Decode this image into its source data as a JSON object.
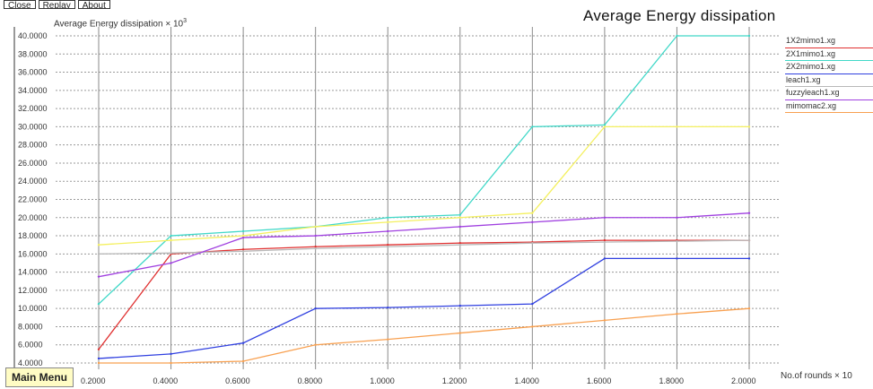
{
  "toolbar": {
    "close_label": "Close",
    "replay_label": "Replay",
    "about_label": "About"
  },
  "main_menu_label": "Main Menu",
  "chart_data": {
    "type": "line",
    "title": "Average Energy dissipation",
    "ylabel": "Average Energy dissipation × 10",
    "ylabel_exp": "3",
    "xlabel": "No.of rounds × 10",
    "x": [
      0.2,
      0.4,
      0.6,
      0.8,
      1.0,
      1.2,
      1.4,
      1.6,
      1.8,
      2.0
    ],
    "xlim": [
      0.2,
      2.0
    ],
    "ylim": [
      4.0,
      40.0
    ],
    "yticks": [
      "4.0000",
      "6.0000",
      "8.0000",
      "10.0000",
      "12.0000",
      "14.0000",
      "16.0000",
      "18.0000",
      "20.0000",
      "22.0000",
      "24.0000",
      "26.0000",
      "28.0000",
      "30.0000",
      "32.0000",
      "34.0000",
      "36.0000",
      "38.0000",
      "40.0000"
    ],
    "xticks": [
      "0.2000",
      "0.4000",
      "0.6000",
      "0.8000",
      "1.0000",
      "1.2000",
      "1.4000",
      "1.6000",
      "1.8000",
      "2.0000"
    ],
    "grid": true,
    "legend_position": "top-right",
    "series": [
      {
        "name": "1X2mimo1.xg",
        "color": "#e03030",
        "values": [
          5.5,
          16.0,
          16.5,
          16.8,
          17.0,
          17.2,
          17.3,
          17.5,
          17.5,
          17.5
        ]
      },
      {
        "name": "2X1mimo1.xg",
        "color": "#40d8c8",
        "values": [
          10.5,
          18.0,
          18.5,
          19.0,
          20.0,
          20.3,
          30.0,
          30.2,
          40.0,
          40.0
        ]
      },
      {
        "name": "2X2mimo1.xg",
        "color": "#3040e0",
        "values": [
          4.5,
          5.0,
          6.2,
          10.0,
          10.1,
          10.3,
          10.5,
          15.5,
          15.5,
          15.5
        ]
      },
      {
        "name": "leach1.xg",
        "color": "#b8b8b8",
        "values": [
          16.0,
          16.1,
          16.3,
          16.6,
          16.8,
          17.0,
          17.2,
          17.3,
          17.4,
          17.5
        ]
      },
      {
        "name": "fuzzyleach1.xg",
        "color": "#a040e0",
        "values": [
          13.5,
          15.0,
          17.8,
          18.0,
          18.5,
          19.0,
          19.5,
          20.0,
          20.0,
          20.5
        ]
      },
      {
        "name": "mimomac2.xg",
        "color": "#f8a050",
        "values": [
          4.0,
          4.0,
          4.2,
          6.0,
          6.6,
          7.3,
          8.0,
          8.7,
          9.4,
          10.0
        ]
      },
      {
        "name": "",
        "color": "#f4f060",
        "values": [
          17.0,
          17.5,
          18.0,
          19.0,
          19.5,
          20.0,
          20.5,
          30.0,
          30.0,
          30.0
        ]
      }
    ]
  }
}
